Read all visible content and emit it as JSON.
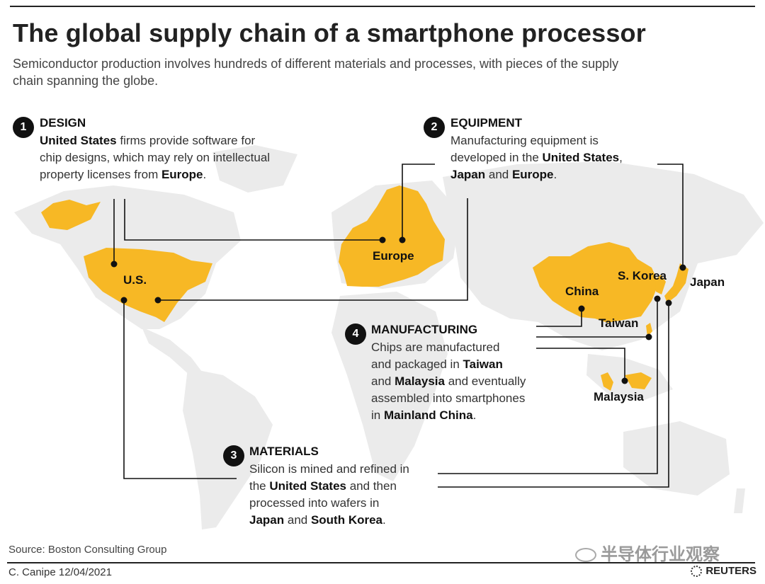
{
  "header": {
    "title": "The global supply chain of a smartphone processor",
    "subtitle": "Semiconductor production involves hundreds of different materials and processes, with pieces of the supply chain spanning the globe."
  },
  "steps": [
    {
      "number": "1",
      "title": "DESIGN",
      "body": [
        [
          {
            "t": "United States",
            "b": true
          },
          {
            "t": " firms provide software for"
          }
        ],
        [
          {
            "t": "chip designs, which may rely on intellectual"
          }
        ],
        [
          {
            "t": "property licenses from "
          },
          {
            "t": "Europe",
            "b": true
          },
          {
            "t": "."
          }
        ]
      ]
    },
    {
      "number": "2",
      "title": "EQUIPMENT",
      "body": [
        [
          {
            "t": "Manufacturing equipment is"
          }
        ],
        [
          {
            "t": "developed in the "
          },
          {
            "t": "United States",
            "b": true
          },
          {
            "t": ","
          }
        ],
        [
          {
            "t": "Japan",
            "b": true
          },
          {
            "t": " and "
          },
          {
            "t": "Europe",
            "b": true
          },
          {
            "t": "."
          }
        ]
      ]
    },
    {
      "number": "3",
      "title": "MATERIALS",
      "body": [
        [
          {
            "t": "Silicon is mined and refined in"
          }
        ],
        [
          {
            "t": "the "
          },
          {
            "t": "United States",
            "b": true
          },
          {
            "t": " and then"
          }
        ],
        [
          {
            "t": "processed into wafers in"
          }
        ],
        [
          {
            "t": "Japan",
            "b": true
          },
          {
            "t": " and "
          },
          {
            "t": "South Korea",
            "b": true
          },
          {
            "t": "."
          }
        ]
      ]
    },
    {
      "number": "4",
      "title": "MANUFACTURING",
      "body": [
        [
          {
            "t": "Chips are manufactured"
          }
        ],
        [
          {
            "t": "and packaged in "
          },
          {
            "t": "Taiwan",
            "b": true
          }
        ],
        [
          {
            "t": "and "
          },
          {
            "t": "Malaysia",
            "b": true
          },
          {
            "t": " and eventually"
          }
        ],
        [
          {
            "t": "assembled into smartphones"
          }
        ],
        [
          {
            "t": "in "
          },
          {
            "t": "Mainland China",
            "b": true
          },
          {
            "t": "."
          }
        ]
      ]
    }
  ],
  "countries": {
    "us": "U.S.",
    "europe": "Europe",
    "china": "China",
    "skorea": "S. Korea",
    "japan": "Japan",
    "taiwan": "Taiwan",
    "malaysia": "Malaysia"
  },
  "colors": {
    "highlight": "#F7B825",
    "land": "#EBEBEB",
    "line": "#111111"
  },
  "footer": {
    "source": "Source: Boston Consulting Group",
    "credit": "C. Canipe 12/04/2021",
    "brand": "REUTERS",
    "watermark": "半导体行业观察"
  }
}
